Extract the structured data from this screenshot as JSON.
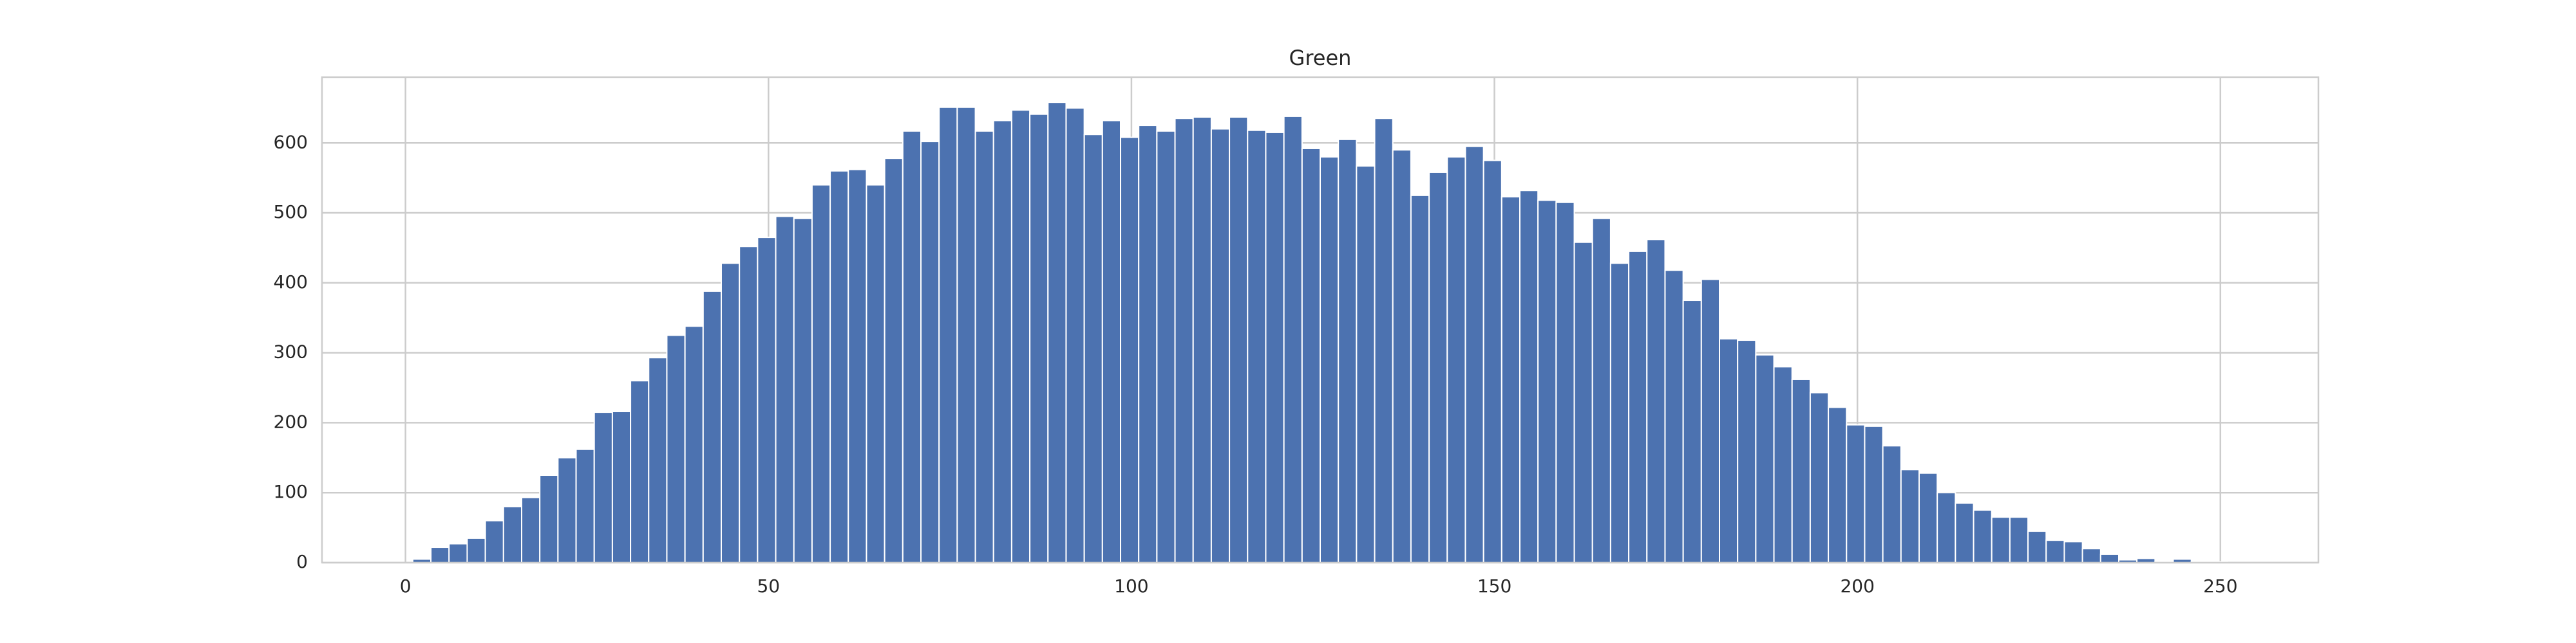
{
  "chart_data": {
    "type": "histogram",
    "title": "Green",
    "bins": [
      1,
      3.5,
      6,
      8.5,
      11,
      13.5,
      16,
      18.5,
      21,
      23.5,
      26,
      28.5,
      31,
      33.5,
      36,
      38.5,
      41,
      43.5,
      46,
      48.5,
      51,
      53.5,
      56,
      58.5,
      61,
      63.5,
      66,
      68.5,
      71,
      73.5,
      76,
      78.5,
      81,
      83.5,
      86,
      88.5,
      91,
      93.5,
      96,
      98.5,
      101,
      103.5,
      106,
      108.5,
      111,
      113.5,
      116,
      118.5,
      121,
      123.5,
      126,
      128.5,
      131,
      133.5,
      136,
      138.5,
      141,
      143.5,
      146,
      148.5,
      151,
      153.5,
      156,
      158.5,
      161,
      163.5,
      166,
      168.5,
      171,
      173.5,
      176,
      178.5,
      181,
      183.5,
      186,
      188.5,
      191,
      193.5,
      196,
      198.5,
      201,
      203.5,
      206,
      208.5,
      211,
      213.5,
      216,
      218.5,
      221,
      223.5,
      226,
      228.5,
      231,
      233.5,
      236,
      238.5,
      241,
      243.5,
      246,
      248.5,
      251
    ],
    "values": [
      5,
      22,
      27,
      35,
      60,
      80,
      93,
      125,
      150,
      162,
      215,
      216,
      260,
      293,
      325,
      338,
      388,
      428,
      452,
      465,
      495,
      492,
      540,
      560,
      562,
      540,
      578,
      617,
      602,
      651,
      651,
      617,
      632,
      647,
      641,
      658,
      650,
      612,
      632,
      608,
      625,
      617,
      635,
      637,
      620,
      637,
      618,
      615,
      638,
      592,
      580,
      605,
      567,
      635,
      590,
      525,
      558,
      580,
      595,
      575,
      523,
      532,
      518,
      515,
      458,
      492,
      428,
      445,
      462,
      418,
      375,
      405,
      320,
      318,
      297,
      280,
      262,
      243,
      222,
      197,
      195,
      167,
      133,
      128,
      100,
      85,
      75,
      65,
      65,
      45,
      32,
      30,
      20,
      12,
      4,
      6,
      1,
      5,
      1,
      1
    ],
    "color": "#4c72b0",
    "xlim": [
      -11.5,
      263.5
    ],
    "xticks": [
      0,
      50,
      100,
      150,
      200,
      250
    ],
    "ylim": [
      0,
      694
    ],
    "yticks": [
      0,
      100,
      200,
      300,
      400,
      500,
      600
    ],
    "grid": true
  }
}
